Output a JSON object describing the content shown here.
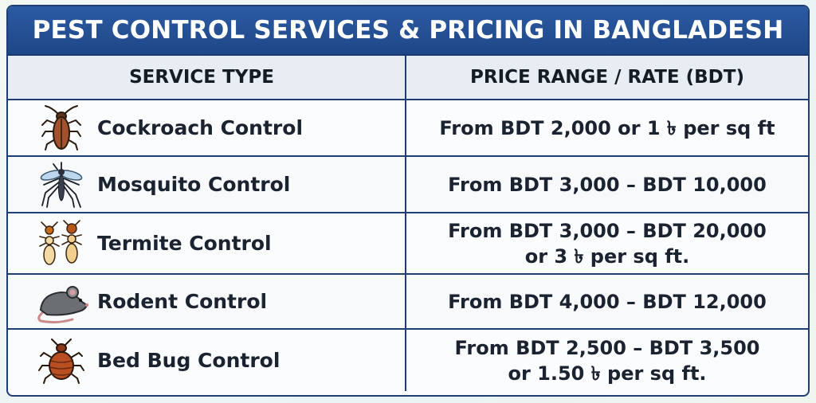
{
  "title": "PEST CONTROL SERVICES & PRICING IN BANGLADESH",
  "headers": {
    "service": "SERVICE TYPE",
    "price": "PRICE RANGE / RATE (BDT)"
  },
  "rows": [
    {
      "service": "Cockroach Control",
      "icon": "cockroach-icon",
      "price_line1": "From BDT 2,000 or 1 ৳ per sq ft",
      "price_line2": ""
    },
    {
      "service": "Mosquito Control",
      "icon": "mosquito-icon",
      "price_line1": "From BDT 3,000 – BDT 10,000",
      "price_line2": ""
    },
    {
      "service": "Termite Control",
      "icon": "termite-icon",
      "price_line1": "From BDT 3,000 – BDT 20,000",
      "price_line2": "or 3 ৳ per sq ft."
    },
    {
      "service": "Rodent Control",
      "icon": "rat-icon",
      "price_line1": "From BDT 4,000 – BDT 12,000",
      "price_line2": ""
    },
    {
      "service": "Bed Bug Control",
      "icon": "bed-bug-icon",
      "price_line1": "From BDT 2,500 – BDT 3,500",
      "price_line2": "or 1.50 ৳ per sq ft."
    }
  ],
  "colors": {
    "title_bg": "#2351a0",
    "border": "#1f3e73",
    "header_bg": "#e7edf3"
  }
}
